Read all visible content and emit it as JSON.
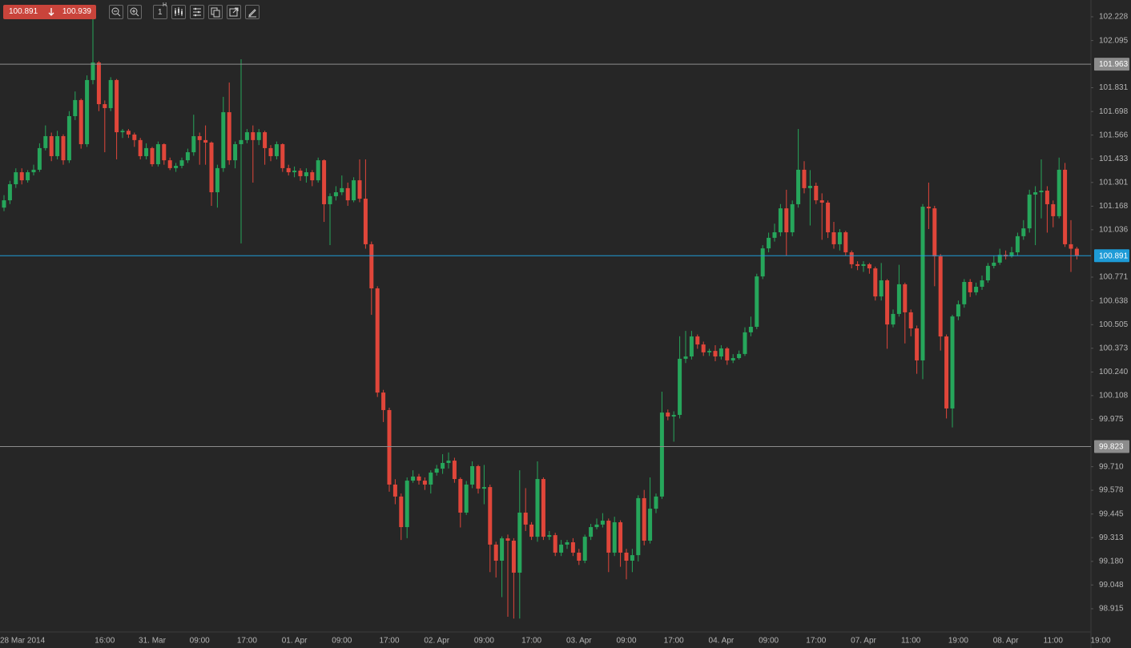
{
  "toolbar": {
    "bid": "100.891",
    "ask": "100.939",
    "timeframe_value": "1",
    "timeframe_unit": "H"
  },
  "chart_data": {
    "type": "candlestick",
    "up_color": "#26a65b",
    "down_color": "#e0463a",
    "ylim": [
      98.785,
      102.322
    ],
    "yticks": [
      102.228,
      102.095,
      101.831,
      101.698,
      101.566,
      101.433,
      101.301,
      101.168,
      101.036,
      100.771,
      100.638,
      100.505,
      100.373,
      {
        "value": 100.24,
        "label": "100.240"
      },
      100.108,
      99.975,
      {
        "value": 99.71,
        "label": "99.710"
      },
      99.578,
      99.445,
      99.313,
      {
        "value": 99.18,
        "label": "99.180"
      },
      99.048,
      98.915
    ],
    "levels": [
      {
        "value": 101.963,
        "color": "#8c8c8c"
      },
      {
        "value": 100.891,
        "color": "#1e9bd7"
      },
      {
        "value": 99.823,
        "color": "#8c8c8c"
      }
    ],
    "categories": [
      null,
      "28 Mar 2014",
      null,
      null,
      null,
      null,
      null,
      null,
      null,
      null,
      null,
      null,
      null,
      null,
      null,
      null,
      null,
      "16:00",
      null,
      null,
      null,
      null,
      null,
      null,
      null,
      "31. Mar",
      null,
      null,
      null,
      null,
      null,
      null,
      null,
      "09:00",
      null,
      null,
      null,
      null,
      null,
      null,
      null,
      "17:00",
      null,
      null,
      null,
      null,
      null,
      null,
      null,
      "01. Apr",
      null,
      null,
      null,
      null,
      null,
      null,
      null,
      "09:00",
      null,
      null,
      null,
      null,
      null,
      null,
      null,
      "17:00",
      null,
      null,
      null,
      null,
      null,
      null,
      null,
      "02. Apr",
      null,
      null,
      null,
      null,
      null,
      null,
      null,
      "09:00",
      null,
      null,
      null,
      null,
      null,
      null,
      null,
      "17:00",
      null,
      null,
      null,
      null,
      null,
      null,
      null,
      "03. Apr",
      null,
      null,
      null,
      null,
      null,
      null,
      null,
      "09:00",
      null,
      null,
      null,
      null,
      null,
      null,
      null,
      "17:00",
      null,
      null,
      null,
      null,
      null,
      null,
      null,
      "04. Apr",
      null,
      null,
      null,
      null,
      null,
      null,
      null,
      "09:00",
      null,
      null,
      null,
      null,
      null,
      null,
      null,
      "17:00",
      null,
      null,
      null,
      null,
      null,
      null,
      null,
      "07. Apr",
      null,
      null,
      null,
      null,
      null,
      null,
      null,
      "11:00",
      null,
      null,
      null,
      null,
      null,
      null,
      null,
      "19:00",
      null,
      null,
      null,
      null,
      null,
      null,
      null,
      "08. Apr",
      null,
      null,
      null,
      null,
      null,
      null,
      null,
      "11:00",
      null,
      null,
      null,
      null,
      null,
      null,
      null,
      "19:00"
    ],
    "open": [
      101.16,
      101.201,
      101.291,
      101.358,
      101.313,
      101.358,
      101.372,
      101.493,
      101.56,
      101.448,
      101.56,
      101.425,
      101.672,
      101.762,
      101.515,
      101.874,
      101.972,
      101.739,
      101.717,
      101.874,
      101.582,
      101.59,
      101.569,
      101.538,
      101.448,
      101.493,
      101.403,
      101.515,
      101.425,
      101.381,
      101.394,
      101.425,
      101.47,
      101.56,
      101.538,
      101.524,
      101.246,
      101.381,
      101.694,
      101.425,
      101.515,
      101.538,
      101.582,
      101.538,
      101.582,
      101.493,
      101.448,
      101.515,
      101.381,
      101.358,
      101.367,
      101.336,
      101.358,
      101.313,
      101.425,
      101.179,
      101.224,
      101.246,
      101.269,
      101.201,
      101.313,
      101.21,
      100.955,
      100.708,
      100.125,
      100.027,
      99.61,
      99.543,
      99.372,
      99.632,
      99.655,
      99.632,
      99.61,
      99.677,
      99.699,
      99.731,
      99.744,
      99.641,
      99.453,
      99.61,
      99.713,
      99.587,
      99.596,
      99.274,
      99.184,
      99.309,
      99.296,
      99.117,
      99.453,
      99.386,
      99.318,
      99.641,
      99.318,
      99.327,
      99.229,
      99.274,
      99.287,
      99.229,
      99.184,
      99.318,
      99.372,
      99.386,
      99.408,
      99.229,
      99.399,
      99.229,
      99.184,
      99.215,
      99.534,
      99.296,
      99.475,
      99.543,
      100.013,
      99.991,
      100.0,
      100.314,
      100.327,
      100.439,
      100.394,
      100.35,
      100.358,
      100.327,
      100.372,
      100.305,
      100.318,
      100.341,
      100.462,
      100.493,
      100.775,
      100.932,
      100.991,
      101.022,
      101.156,
      101.022,
      101.179,
      101.372,
      101.269,
      101.282,
      101.201,
      101.188,
      101.022,
      100.955,
      101.022,
      100.91,
      100.843,
      100.834,
      100.843,
      100.82,
      100.663,
      100.753,
      100.506,
      100.565,
      100.731,
      100.574,
      100.484,
      100.305,
      101.165,
      101.156,
      100.887,
      100.439,
      100.036,
      100.551,
      100.619,
      100.744,
      100.686,
      100.717,
      100.753,
      100.834,
      100.852,
      100.896,
      100.887,
      100.91,
      101.0,
      101.044,
      101.233,
      101.246,
      101.255,
      101.179,
      101.112,
      101.372,
      100.955,
      100.93,
      null,
      null,
      null,
      null
    ],
    "high": [
      101.23,
      101.31,
      101.38,
      101.38,
      101.37,
      101.4,
      101.52,
      101.62,
      101.58,
      101.59,
      101.57,
      101.7,
      101.81,
      101.77,
      101.9,
      102.22,
      101.98,
      101.76,
      101.89,
      101.88,
      101.6,
      101.6,
      101.58,
      101.55,
      101.52,
      101.5,
      101.53,
      101.52,
      101.44,
      101.41,
      101.44,
      101.49,
      101.68,
      101.58,
      101.62,
      101.53,
      101.4,
      101.78,
      101.86,
      101.53,
      101.99,
      101.6,
      101.62,
      101.6,
      101.59,
      101.51,
      101.53,
      101.52,
      101.4,
      101.39,
      101.38,
      101.38,
      101.37,
      101.44,
      101.43,
      101.24,
      101.28,
      101.34,
      101.3,
      101.33,
      101.43,
      101.43,
      100.97,
      100.72,
      100.14,
      100.04,
      99.64,
      99.56,
      99.65,
      99.69,
      99.67,
      99.65,
      99.69,
      99.72,
      99.78,
      99.79,
      99.76,
      99.65,
      99.63,
      99.74,
      99.72,
      99.72,
      99.61,
      99.29,
      99.32,
      99.33,
      99.31,
      99.69,
      99.59,
      99.4,
      99.74,
      99.65,
      99.35,
      99.34,
      99.3,
      99.3,
      99.31,
      99.25,
      99.33,
      99.39,
      99.42,
      99.45,
      99.42,
      99.43,
      99.41,
      99.25,
      99.25,
      99.55,
      99.58,
      99.65,
      99.56,
      100.13,
      100.03,
      100.02,
      100.44,
      100.47,
      100.47,
      100.45,
      100.41,
      100.37,
      100.39,
      100.39,
      100.38,
      100.34,
      100.36,
      100.49,
      100.55,
      100.79,
      100.95,
      101.02,
      101.07,
      101.18,
      101.26,
      101.2,
      101.6,
      101.42,
      101.37,
      101.3,
      101.24,
      101.2,
      101.08,
      101.04,
      101.03,
      100.92,
      100.86,
      100.86,
      100.85,
      100.83,
      100.85,
      100.76,
      100.59,
      100.84,
      100.74,
      100.59,
      100.5,
      101.18,
      101.3,
      101.17,
      100.9,
      100.45,
      100.56,
      100.64,
      100.76,
      100.76,
      100.74,
      100.78,
      100.85,
      100.89,
      100.93,
      100.92,
      100.94,
      101.02,
      101.09,
      101.26,
      101.28,
      101.43,
      101.28,
      101.2,
      101.44,
      101.41,
      101.09,
      100.94,
      null,
      null,
      null,
      null
    ],
    "low": [
      101.14,
      101.18,
      101.27,
      101.29,
      101.3,
      101.34,
      101.36,
      101.48,
      101.42,
      101.43,
      101.4,
      101.41,
      101.65,
      101.49,
      101.5,
      101.85,
      101.7,
      101.47,
      101.7,
      101.43,
      101.55,
      101.55,
      101.5,
      101.43,
      101.43,
      101.39,
      101.39,
      101.4,
      101.37,
      101.36,
      101.38,
      101.41,
      101.45,
      101.4,
      101.4,
      101.17,
      101.16,
      101.36,
      101.4,
      101.38,
      100.96,
      101.52,
      101.3,
      101.51,
      101.4,
      101.42,
      101.43,
      101.36,
      101.34,
      101.33,
      101.31,
      101.3,
      101.28,
      101.3,
      101.08,
      100.95,
      101.2,
      101.23,
      101.17,
      101.19,
      101.19,
      100.93,
      100.56,
      100.1,
      99.96,
      99.57,
      99.5,
      99.3,
      99.31,
      99.62,
      99.61,
      99.58,
      99.56,
      99.66,
      99.67,
      99.7,
      99.62,
      99.37,
      99.44,
      99.59,
      99.56,
      99.5,
      99.12,
      99.09,
      98.98,
      98.87,
      98.86,
      98.86,
      99.35,
      99.3,
      99.29,
      99.3,
      99.3,
      99.21,
      99.21,
      99.25,
      99.21,
      99.16,
      99.17,
      99.3,
      99.36,
      99.37,
      99.12,
      99.21,
      99.15,
      99.08,
      99.12,
      99.18,
      99.27,
      99.28,
      99.45,
      99.53,
      99.97,
      99.85,
      99.98,
      100.29,
      100.31,
      100.37,
      100.33,
      100.33,
      100.3,
      100.31,
      100.28,
      100.29,
      100.31,
      100.33,
      100.44,
      100.48,
      100.76,
      100.91,
      100.97,
      101.0,
      100.89,
      101.0,
      101.16,
      101.24,
      101.06,
      101.18,
      100.98,
      100.99,
      100.93,
      100.92,
      100.89,
      100.82,
      100.81,
      100.8,
      100.79,
      100.64,
      100.64,
      100.37,
      100.49,
      100.55,
      100.4,
      100.44,
      100.23,
      100.2,
      101.04,
      100.72,
      100.36,
      99.98,
      99.93,
      100.53,
      100.6,
      100.66,
      100.67,
      100.7,
      100.74,
      100.82,
      100.84,
      100.87,
      100.88,
      100.89,
      100.98,
      101.02,
      100.95,
      101.1,
      101.02,
      101.05,
      101.1,
      100.94,
      100.8,
      100.87,
      null,
      null,
      null,
      null
    ],
    "close": [
      101.201,
      101.291,
      101.358,
      101.313,
      101.358,
      101.372,
      101.493,
      101.56,
      101.448,
      101.56,
      101.425,
      101.672,
      101.762,
      101.515,
      101.874,
      101.972,
      101.739,
      101.717,
      101.874,
      101.582,
      101.59,
      101.569,
      101.538,
      101.448,
      101.493,
      101.403,
      101.515,
      101.425,
      101.381,
      101.394,
      101.425,
      101.47,
      101.56,
      101.538,
      101.524,
      101.246,
      101.381,
      101.694,
      101.425,
      101.515,
      101.538,
      101.582,
      101.538,
      101.582,
      101.493,
      101.448,
      101.515,
      101.381,
      101.358,
      101.367,
      101.336,
      101.358,
      101.313,
      101.425,
      101.179,
      101.224,
      101.246,
      101.269,
      101.201,
      101.313,
      101.21,
      100.955,
      100.708,
      100.125,
      100.027,
      99.61,
      99.543,
      99.372,
      99.632,
      99.655,
      99.632,
      99.61,
      99.677,
      99.699,
      99.731,
      99.744,
      99.641,
      99.453,
      99.61,
      99.713,
      99.587,
      99.596,
      99.274,
      99.184,
      99.309,
      99.296,
      99.117,
      99.453,
      99.386,
      99.318,
      99.641,
      99.318,
      99.327,
      99.229,
      99.274,
      99.287,
      99.229,
      99.184,
      99.318,
      99.372,
      99.386,
      99.408,
      99.229,
      99.399,
      99.229,
      99.184,
      99.215,
      99.534,
      99.296,
      99.475,
      99.543,
      100.013,
      99.991,
      100.0,
      100.314,
      100.327,
      100.439,
      100.394,
      100.35,
      100.358,
      100.327,
      100.372,
      100.305,
      100.318,
      100.341,
      100.462,
      100.493,
      100.775,
      100.932,
      100.991,
      101.022,
      101.156,
      101.022,
      101.179,
      101.372,
      101.269,
      101.282,
      101.201,
      101.188,
      101.022,
      100.955,
      101.022,
      100.91,
      100.843,
      100.834,
      100.843,
      100.82,
      100.663,
      100.753,
      100.506,
      100.565,
      100.731,
      100.574,
      100.484,
      100.305,
      101.165,
      101.156,
      100.887,
      100.439,
      100.036,
      100.551,
      100.619,
      100.744,
      100.686,
      100.717,
      100.753,
      100.834,
      100.852,
      100.896,
      100.887,
      100.91,
      101.0,
      101.044,
      101.233,
      101.246,
      101.255,
      101.179,
      101.112,
      101.372,
      100.955,
      100.93,
      100.891,
      null,
      null,
      null,
      null
    ]
  }
}
